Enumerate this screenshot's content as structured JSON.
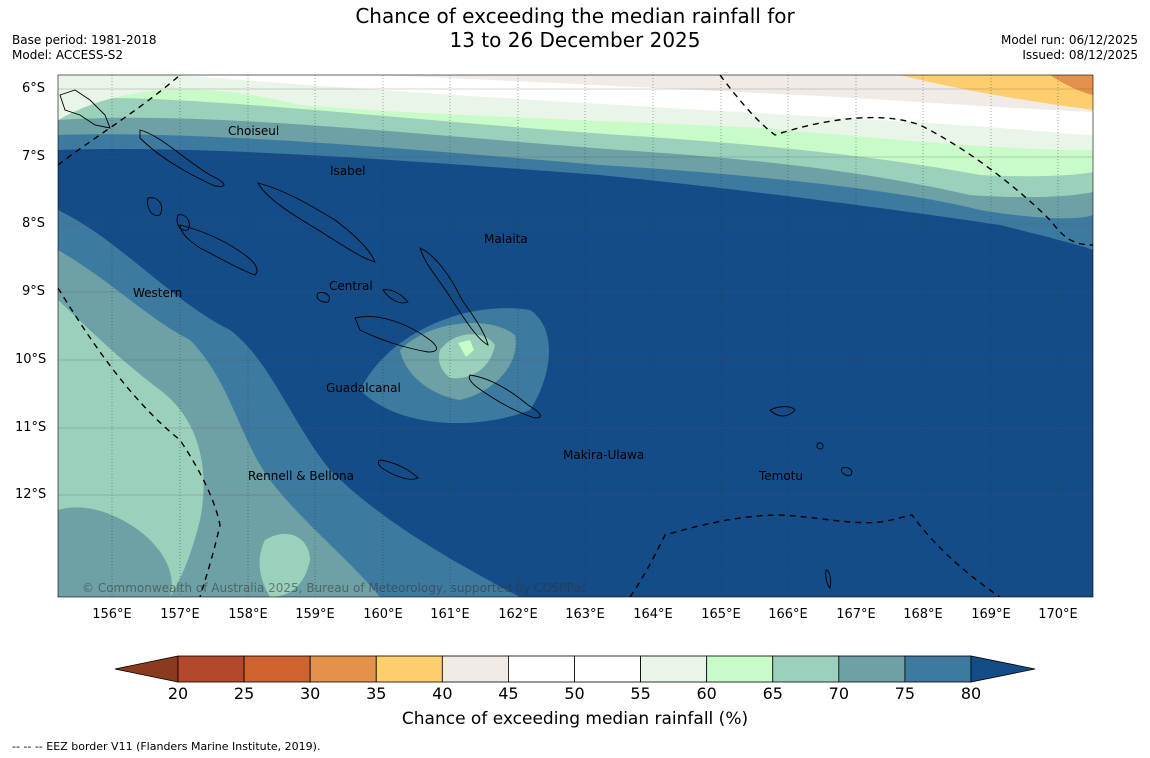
{
  "header": {
    "title_line1": "Chance of exceeding the median rainfall for",
    "title_line2": "13 to 26 December 2025",
    "base_period": "Base period: 1981-2018",
    "model": "Model: ACCESS-S2",
    "model_run": "Model run: 06/12/2025",
    "issued": "Issued: 08/12/2025"
  },
  "map": {
    "lat_labels": [
      "6°S",
      "7°S",
      "8°S",
      "9°S",
      "10°S",
      "11°S",
      "12°S"
    ],
    "lon_labels": [
      "156°E",
      "157°E",
      "158°E",
      "159°E",
      "160°E",
      "161°E",
      "162°E",
      "163°E",
      "164°E",
      "165°E",
      "166°E",
      "167°E",
      "168°E",
      "169°E",
      "170°E"
    ],
    "places": {
      "choiseul": "Choiseul",
      "isabel": "Isabel",
      "malaita": "Malaita",
      "central": "Central",
      "western": "Western",
      "guadalcanal": "Guadalcanal",
      "makira": "Makira-Ulawa",
      "rennell": "Rennell & Bellona",
      "temotu": "Temotu"
    },
    "copyright": "© Commonwealth of Australia 2025, Bureau of Meteorology, supported by COSPPac"
  },
  "colorbar": {
    "ticks": [
      "20",
      "25",
      "30",
      "35",
      "40",
      "45",
      "50",
      "55",
      "60",
      "65",
      "70",
      "75",
      "80"
    ],
    "colors": [
      "#8b3a1e",
      "#b5472a",
      "#cf6330",
      "#e4924a",
      "#fdce6b",
      "#f0ebe7",
      "#ffffff",
      "#ffffff",
      "#eaf5ea",
      "#c8fbc8",
      "#9bd1ba",
      "#6da1a5",
      "#3d7aa0",
      "#144c88"
    ],
    "title": "Chance of exceeding median rainfall (%)"
  },
  "footer": {
    "eez_note": "--  --  -- EEZ border V11 (Flanders Marine Institute, 2019)."
  }
}
